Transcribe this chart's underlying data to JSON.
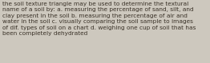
{
  "lines": [
    "the soil texture triangle may be used to determine the textural",
    "name of a soil by: a. measuring the percentage of sand, silt, and",
    "clay present in the soil b. measuring the percentage of air and",
    "water in the soil c. visually comparing the soil sample to images",
    "of dif. types of soil on a chart d. weighing one cup of soil that has",
    "been completely dehydrated"
  ],
  "background_color": "#cdc8be",
  "text_color": "#3a3228",
  "font_size": 5.3,
  "figsize": [
    2.62,
    0.79
  ],
  "dpi": 100
}
